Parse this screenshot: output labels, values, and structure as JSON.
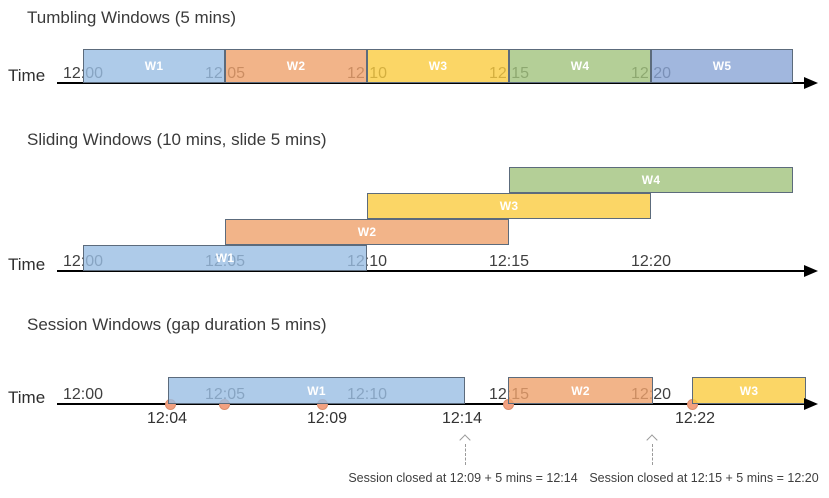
{
  "palette": {
    "window_colors": {
      "blue": "#9ABEE3",
      "orange": "#EFA16C",
      "yellow": "#FACC40",
      "green": "#A1C37D",
      "periwinkle": "#8AA5D6"
    },
    "window_fill_opacity": "0.8",
    "window_border": "#5C6B7C",
    "event_dot_fill": "#F3A181",
    "event_dot_border": "#DD8E6C",
    "axis_color": "#000000",
    "text_color": "#3F3F3F",
    "annotation_arrow_color": "#9A9A9A"
  },
  "sections": [
    {
      "title": "Tumbling Windows (5 mins)",
      "axis_label": "Time",
      "windows": [
        {
          "label": "W1",
          "color": "blue"
        },
        {
          "label": "W2",
          "color": "orange"
        },
        {
          "label": "W3",
          "color": "yellow"
        },
        {
          "label": "W4",
          "color": "green"
        },
        {
          "label": "W5",
          "color": "periwinkle"
        }
      ],
      "ticks": [
        "12:00",
        "12:05",
        "12:10",
        "12:15",
        "12:20"
      ]
    },
    {
      "title": "Sliding Windows (10 mins, slide 5 mins)",
      "axis_label": "Time",
      "windows": [
        {
          "label": "W1",
          "color": "blue"
        },
        {
          "label": "W2",
          "color": "orange"
        },
        {
          "label": "W3",
          "color": "yellow"
        },
        {
          "label": "W4",
          "color": "green"
        }
      ],
      "ticks": [
        "12:00",
        "12:05",
        "12:10",
        "12:15",
        "12:20"
      ]
    },
    {
      "title": "Session Windows (gap duration 5 mins)",
      "axis_label": "Time",
      "windows": [
        {
          "label": "W1",
          "color": "blue"
        },
        {
          "label": "W2",
          "color": "orange"
        },
        {
          "label": "W3",
          "color": "yellow"
        }
      ],
      "ticks": [
        "12:00",
        "12:05",
        "12:10",
        "12:15",
        "12:20"
      ],
      "event_labels": [
        "12:04",
        "12:09",
        "12:14",
        "12:22"
      ],
      "annotations": [
        "Session closed at 12:09 + 5 mins = 12:14",
        "Session closed at 12:15 + 5 mins = 12:20"
      ]
    }
  ]
}
